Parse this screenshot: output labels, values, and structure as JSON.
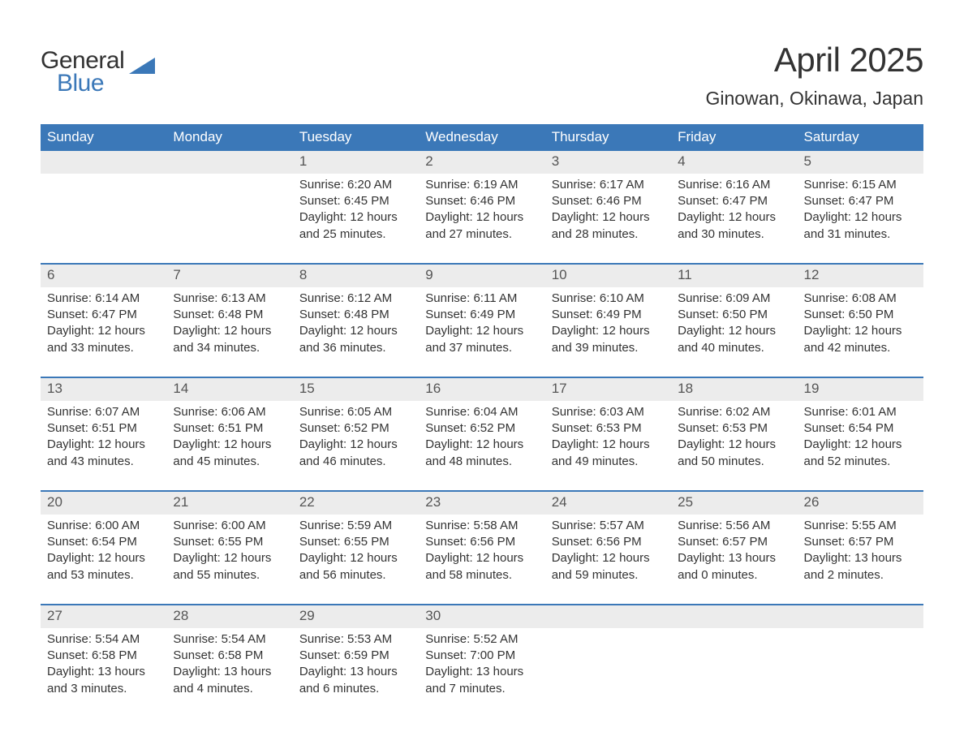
{
  "logo": {
    "word1": "General",
    "word2": "Blue"
  },
  "title": "April 2025",
  "location": "Ginowan, Okinawa, Japan",
  "colors": {
    "header_bg": "#3b78b8",
    "header_text": "#ffffff",
    "daynum_bg": "#ececec",
    "text": "#333333",
    "accent": "#3b78b8"
  },
  "dayHeaders": [
    "Sunday",
    "Monday",
    "Tuesday",
    "Wednesday",
    "Thursday",
    "Friday",
    "Saturday"
  ],
  "weeks": [
    [
      {
        "n": "",
        "empty": true
      },
      {
        "n": "",
        "empty": true
      },
      {
        "n": "1",
        "sr": "Sunrise: 6:20 AM",
        "ss": "Sunset: 6:45 PM",
        "dl1": "Daylight: 12 hours",
        "dl2": "and 25 minutes."
      },
      {
        "n": "2",
        "sr": "Sunrise: 6:19 AM",
        "ss": "Sunset: 6:46 PM",
        "dl1": "Daylight: 12 hours",
        "dl2": "and 27 minutes."
      },
      {
        "n": "3",
        "sr": "Sunrise: 6:17 AM",
        "ss": "Sunset: 6:46 PM",
        "dl1": "Daylight: 12 hours",
        "dl2": "and 28 minutes."
      },
      {
        "n": "4",
        "sr": "Sunrise: 6:16 AM",
        "ss": "Sunset: 6:47 PM",
        "dl1": "Daylight: 12 hours",
        "dl2": "and 30 minutes."
      },
      {
        "n": "5",
        "sr": "Sunrise: 6:15 AM",
        "ss": "Sunset: 6:47 PM",
        "dl1": "Daylight: 12 hours",
        "dl2": "and 31 minutes."
      }
    ],
    [
      {
        "n": "6",
        "sr": "Sunrise: 6:14 AM",
        "ss": "Sunset: 6:47 PM",
        "dl1": "Daylight: 12 hours",
        "dl2": "and 33 minutes."
      },
      {
        "n": "7",
        "sr": "Sunrise: 6:13 AM",
        "ss": "Sunset: 6:48 PM",
        "dl1": "Daylight: 12 hours",
        "dl2": "and 34 minutes."
      },
      {
        "n": "8",
        "sr": "Sunrise: 6:12 AM",
        "ss": "Sunset: 6:48 PM",
        "dl1": "Daylight: 12 hours",
        "dl2": "and 36 minutes."
      },
      {
        "n": "9",
        "sr": "Sunrise: 6:11 AM",
        "ss": "Sunset: 6:49 PM",
        "dl1": "Daylight: 12 hours",
        "dl2": "and 37 minutes."
      },
      {
        "n": "10",
        "sr": "Sunrise: 6:10 AM",
        "ss": "Sunset: 6:49 PM",
        "dl1": "Daylight: 12 hours",
        "dl2": "and 39 minutes."
      },
      {
        "n": "11",
        "sr": "Sunrise: 6:09 AM",
        "ss": "Sunset: 6:50 PM",
        "dl1": "Daylight: 12 hours",
        "dl2": "and 40 minutes."
      },
      {
        "n": "12",
        "sr": "Sunrise: 6:08 AM",
        "ss": "Sunset: 6:50 PM",
        "dl1": "Daylight: 12 hours",
        "dl2": "and 42 minutes."
      }
    ],
    [
      {
        "n": "13",
        "sr": "Sunrise: 6:07 AM",
        "ss": "Sunset: 6:51 PM",
        "dl1": "Daylight: 12 hours",
        "dl2": "and 43 minutes."
      },
      {
        "n": "14",
        "sr": "Sunrise: 6:06 AM",
        "ss": "Sunset: 6:51 PM",
        "dl1": "Daylight: 12 hours",
        "dl2": "and 45 minutes."
      },
      {
        "n": "15",
        "sr": "Sunrise: 6:05 AM",
        "ss": "Sunset: 6:52 PM",
        "dl1": "Daylight: 12 hours",
        "dl2": "and 46 minutes."
      },
      {
        "n": "16",
        "sr": "Sunrise: 6:04 AM",
        "ss": "Sunset: 6:52 PM",
        "dl1": "Daylight: 12 hours",
        "dl2": "and 48 minutes."
      },
      {
        "n": "17",
        "sr": "Sunrise: 6:03 AM",
        "ss": "Sunset: 6:53 PM",
        "dl1": "Daylight: 12 hours",
        "dl2": "and 49 minutes."
      },
      {
        "n": "18",
        "sr": "Sunrise: 6:02 AM",
        "ss": "Sunset: 6:53 PM",
        "dl1": "Daylight: 12 hours",
        "dl2": "and 50 minutes."
      },
      {
        "n": "19",
        "sr": "Sunrise: 6:01 AM",
        "ss": "Sunset: 6:54 PM",
        "dl1": "Daylight: 12 hours",
        "dl2": "and 52 minutes."
      }
    ],
    [
      {
        "n": "20",
        "sr": "Sunrise: 6:00 AM",
        "ss": "Sunset: 6:54 PM",
        "dl1": "Daylight: 12 hours",
        "dl2": "and 53 minutes."
      },
      {
        "n": "21",
        "sr": "Sunrise: 6:00 AM",
        "ss": "Sunset: 6:55 PM",
        "dl1": "Daylight: 12 hours",
        "dl2": "and 55 minutes."
      },
      {
        "n": "22",
        "sr": "Sunrise: 5:59 AM",
        "ss": "Sunset: 6:55 PM",
        "dl1": "Daylight: 12 hours",
        "dl2": "and 56 minutes."
      },
      {
        "n": "23",
        "sr": "Sunrise: 5:58 AM",
        "ss": "Sunset: 6:56 PM",
        "dl1": "Daylight: 12 hours",
        "dl2": "and 58 minutes."
      },
      {
        "n": "24",
        "sr": "Sunrise: 5:57 AM",
        "ss": "Sunset: 6:56 PM",
        "dl1": "Daylight: 12 hours",
        "dl2": "and 59 minutes."
      },
      {
        "n": "25",
        "sr": "Sunrise: 5:56 AM",
        "ss": "Sunset: 6:57 PM",
        "dl1": "Daylight: 13 hours",
        "dl2": "and 0 minutes."
      },
      {
        "n": "26",
        "sr": "Sunrise: 5:55 AM",
        "ss": "Sunset: 6:57 PM",
        "dl1": "Daylight: 13 hours",
        "dl2": "and 2 minutes."
      }
    ],
    [
      {
        "n": "27",
        "sr": "Sunrise: 5:54 AM",
        "ss": "Sunset: 6:58 PM",
        "dl1": "Daylight: 13 hours",
        "dl2": "and 3 minutes."
      },
      {
        "n": "28",
        "sr": "Sunrise: 5:54 AM",
        "ss": "Sunset: 6:58 PM",
        "dl1": "Daylight: 13 hours",
        "dl2": "and 4 minutes."
      },
      {
        "n": "29",
        "sr": "Sunrise: 5:53 AM",
        "ss": "Sunset: 6:59 PM",
        "dl1": "Daylight: 13 hours",
        "dl2": "and 6 minutes."
      },
      {
        "n": "30",
        "sr": "Sunrise: 5:52 AM",
        "ss": "Sunset: 7:00 PM",
        "dl1": "Daylight: 13 hours",
        "dl2": "and 7 minutes."
      },
      {
        "n": "",
        "empty": true
      },
      {
        "n": "",
        "empty": true
      },
      {
        "n": "",
        "empty": true
      }
    ]
  ]
}
